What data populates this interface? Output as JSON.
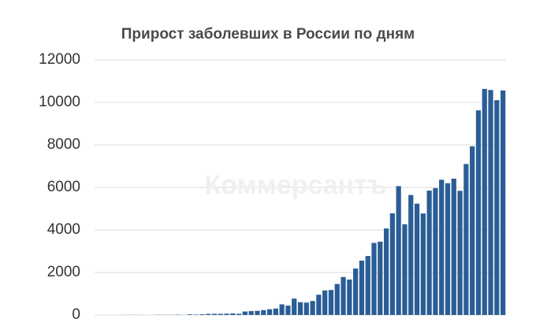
{
  "chart_data": {
    "type": "bar",
    "title": "Прирост заболевших в России по дням",
    "watermark": "Коммерсантъ",
    "categories": [
      null,
      null,
      null,
      null,
      null,
      null,
      null,
      null,
      null,
      null,
      null,
      null,
      null,
      null,
      null,
      null,
      null,
      null,
      null,
      null,
      null,
      null,
      null,
      null,
      null,
      null,
      null,
      null,
      null,
      null,
      null,
      null,
      null,
      null,
      null,
      null,
      null,
      null,
      null,
      null,
      null,
      null,
      null,
      null,
      null,
      null,
      null,
      null,
      null,
      null,
      null,
      null,
      null,
      null,
      null,
      null,
      null,
      null,
      null,
      null,
      null,
      null,
      null,
      null,
      null,
      null,
      null
    ],
    "values": [
      0,
      1,
      0,
      0,
      1,
      6,
      3,
      4,
      0,
      3,
      8,
      6,
      6,
      14,
      4,
      30,
      21,
      33,
      52,
      54,
      53,
      61,
      71,
      57,
      163,
      182,
      196,
      228,
      270,
      302,
      500,
      440,
      771,
      601,
      582,
      658,
      954,
      1154,
      1175,
      1459,
      1786,
      1667,
      2186,
      2558,
      2774,
      3388,
      3448,
      4070,
      4785,
      6060,
      4268,
      5642,
      5236,
      4774,
      5849,
      5966,
      6361,
      6198,
      6411,
      5841,
      7099,
      7933,
      9623,
      10633,
      10581,
      10102,
      10559
    ],
    "color": "#2b5d96",
    "ylim": [
      0,
      12000
    ],
    "yticks": [
      0,
      2000,
      4000,
      6000,
      8000,
      10000,
      12000
    ],
    "grid": true
  }
}
